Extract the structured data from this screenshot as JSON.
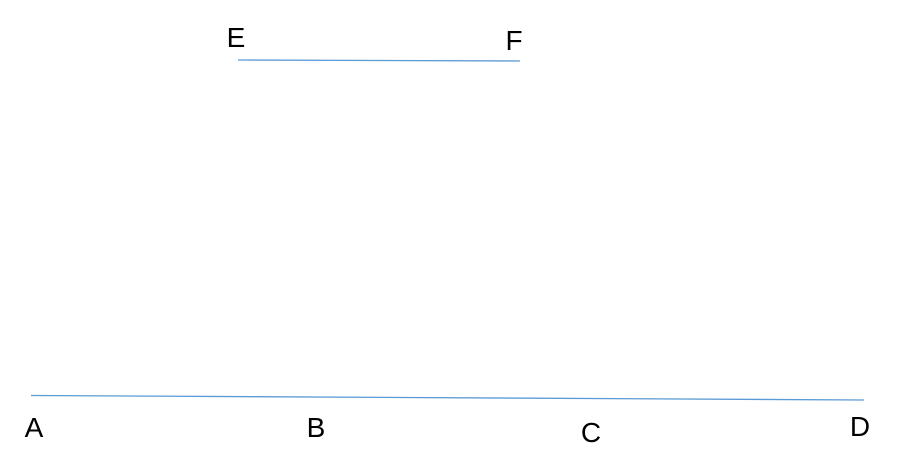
{
  "diagram": {
    "line_color": "#5b9bd5",
    "segments": [
      {
        "name": "EF",
        "from": "E",
        "to": "F"
      },
      {
        "name": "AD",
        "from": "A",
        "to": "D"
      }
    ],
    "points": {
      "E": "E",
      "F": "F",
      "A": "A",
      "B": "B",
      "C": "C",
      "D": "D"
    }
  }
}
